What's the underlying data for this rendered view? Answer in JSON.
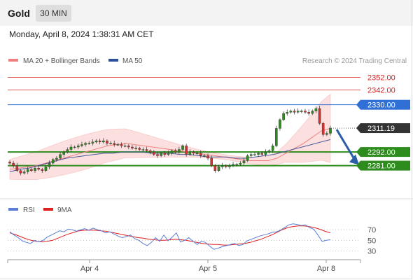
{
  "app": {
    "instrument": "Gold",
    "timeframe": "30 MIN",
    "timestamp": "Monday, April 8, 2024 1:38:31 AM CET"
  },
  "legend": {
    "ma20": "MA 20 + Bollinger Bands",
    "ma50": "MA 50",
    "credit": "Research © 2024 Trading Central",
    "rsi": "RSI",
    "rsi_ma": "9MA"
  },
  "colors": {
    "accent_blue": "#2f6fd6",
    "pivot_blue": "#2f6fd6",
    "support_green": "#2e8b1e",
    "resistance_red": "#d62020",
    "current_price_bg": "#333333",
    "bollinger_fill": "#fcdcdc",
    "ma20": "#f08080",
    "ma50": "#4a5a9a",
    "rsi_line": "#5b7fd6",
    "rsi_ma_line": "#e02020",
    "up_candle": "#2e8b1e",
    "down_candle": "#d63030",
    "arrow": "#2b5ea6"
  },
  "chart_data": {
    "type": "candlestick",
    "price": {
      "ylim": [
        2265,
        2358
      ],
      "levels": [
        {
          "label": "2352.00",
          "value": 2352,
          "role": "resistance"
        },
        {
          "label": "2342.00",
          "value": 2342,
          "role": "resistance"
        },
        {
          "label": "2330.00",
          "value": 2330,
          "role": "pivot"
        },
        {
          "label": "2311.19",
          "value": 2311.19,
          "role": "current"
        },
        {
          "label": "2292.00",
          "value": 2292,
          "role": "support"
        },
        {
          "label": "2281.00",
          "value": 2281,
          "role": "support"
        }
      ],
      "close_series": [
        2283,
        2281,
        2277,
        2275,
        2276,
        2278,
        2277,
        2279,
        2278,
        2277,
        2280,
        2283,
        2286,
        2287,
        2290,
        2292,
        2294,
        2296,
        2296,
        2297,
        2298,
        2299,
        2299,
        2300,
        2301,
        2300,
        2301,
        2299,
        2299,
        2298,
        2298,
        2297,
        2297,
        2296,
        2295,
        2295,
        2294,
        2294,
        2293,
        2292,
        2290,
        2289,
        2291,
        2290,
        2291,
        2293,
        2292,
        2294,
        2297,
        2290,
        2292,
        2291,
        2291,
        2289,
        2289,
        2287,
        2281,
        2277,
        2280,
        2281,
        2280,
        2281,
        2282,
        2282,
        2283,
        2285,
        2289,
        2290,
        2290,
        2291,
        2290,
        2292,
        2293,
        2297,
        2311,
        2318,
        2323,
        2324,
        2325,
        2324,
        2325,
        2325,
        2324,
        2323,
        2325,
        2327,
        2315,
        2306,
        2307,
        2311
      ],
      "ma20_series": [
        2278,
        2279,
        2280,
        2281,
        2283,
        2285,
        2287,
        2289,
        2291,
        2293,
        2295,
        2297,
        2298,
        2299,
        2298,
        2297,
        2296,
        2295,
        2294,
        2293,
        2292,
        2291,
        2290,
        2289,
        2288,
        2287,
        2286,
        2285,
        2285,
        2285,
        2287,
        2291,
        2295,
        2299,
        2304,
        2309,
        2311
      ],
      "ma50_series": [
        2276,
        2278,
        2279,
        2281,
        2283,
        2285,
        2287,
        2288,
        2289,
        2290,
        2291,
        2291,
        2292,
        2292,
        2292,
        2291,
        2291,
        2291,
        2290,
        2290,
        2289,
        2288,
        2288,
        2288,
        2287,
        2287,
        2288,
        2289,
        2290,
        2292,
        2294,
        2296,
        2298,
        2300,
        2302
      ],
      "projection": {
        "from": 2311.19,
        "to": 2281
      }
    },
    "rsi": {
      "ticks": [
        "70",
        "50",
        "30"
      ],
      "tick_values": [
        70,
        50,
        30
      ],
      "ylim": [
        20,
        90
      ],
      "rsi_series": [
        66,
        60,
        55,
        49,
        46,
        44,
        50,
        47,
        50,
        56,
        60,
        64,
        68,
        66,
        71,
        70,
        67,
        70,
        72,
        69,
        73,
        70,
        68,
        64,
        66,
        62,
        58,
        55,
        57,
        60,
        53,
        50,
        44,
        40,
        46,
        55,
        48,
        60,
        49,
        56,
        64,
        47,
        50,
        55,
        48,
        42,
        48,
        46,
        39,
        33,
        35,
        38,
        40,
        42,
        44,
        40,
        42,
        49,
        52,
        55,
        58,
        60,
        62,
        65,
        66,
        69,
        74,
        79,
        81,
        80,
        78,
        79,
        74,
        71,
        60,
        48,
        50,
        51
      ],
      "ma9_series": [
        64,
        61,
        57,
        53,
        50,
        48,
        47,
        48,
        50,
        54,
        58,
        62,
        65,
        68,
        69,
        69,
        69,
        68,
        67,
        65,
        63,
        61,
        59,
        57,
        55,
        54,
        52,
        51,
        50,
        50,
        51,
        52,
        51,
        50,
        48,
        46,
        44,
        43,
        42,
        42,
        41,
        41,
        42,
        43,
        44,
        46,
        49,
        52,
        56,
        60,
        65,
        70,
        74,
        76,
        77,
        77,
        76,
        74,
        71,
        67,
        64
      ]
    },
    "x_labels": [
      "Apr 4",
      "Apr 5",
      "Apr 8"
    ]
  }
}
